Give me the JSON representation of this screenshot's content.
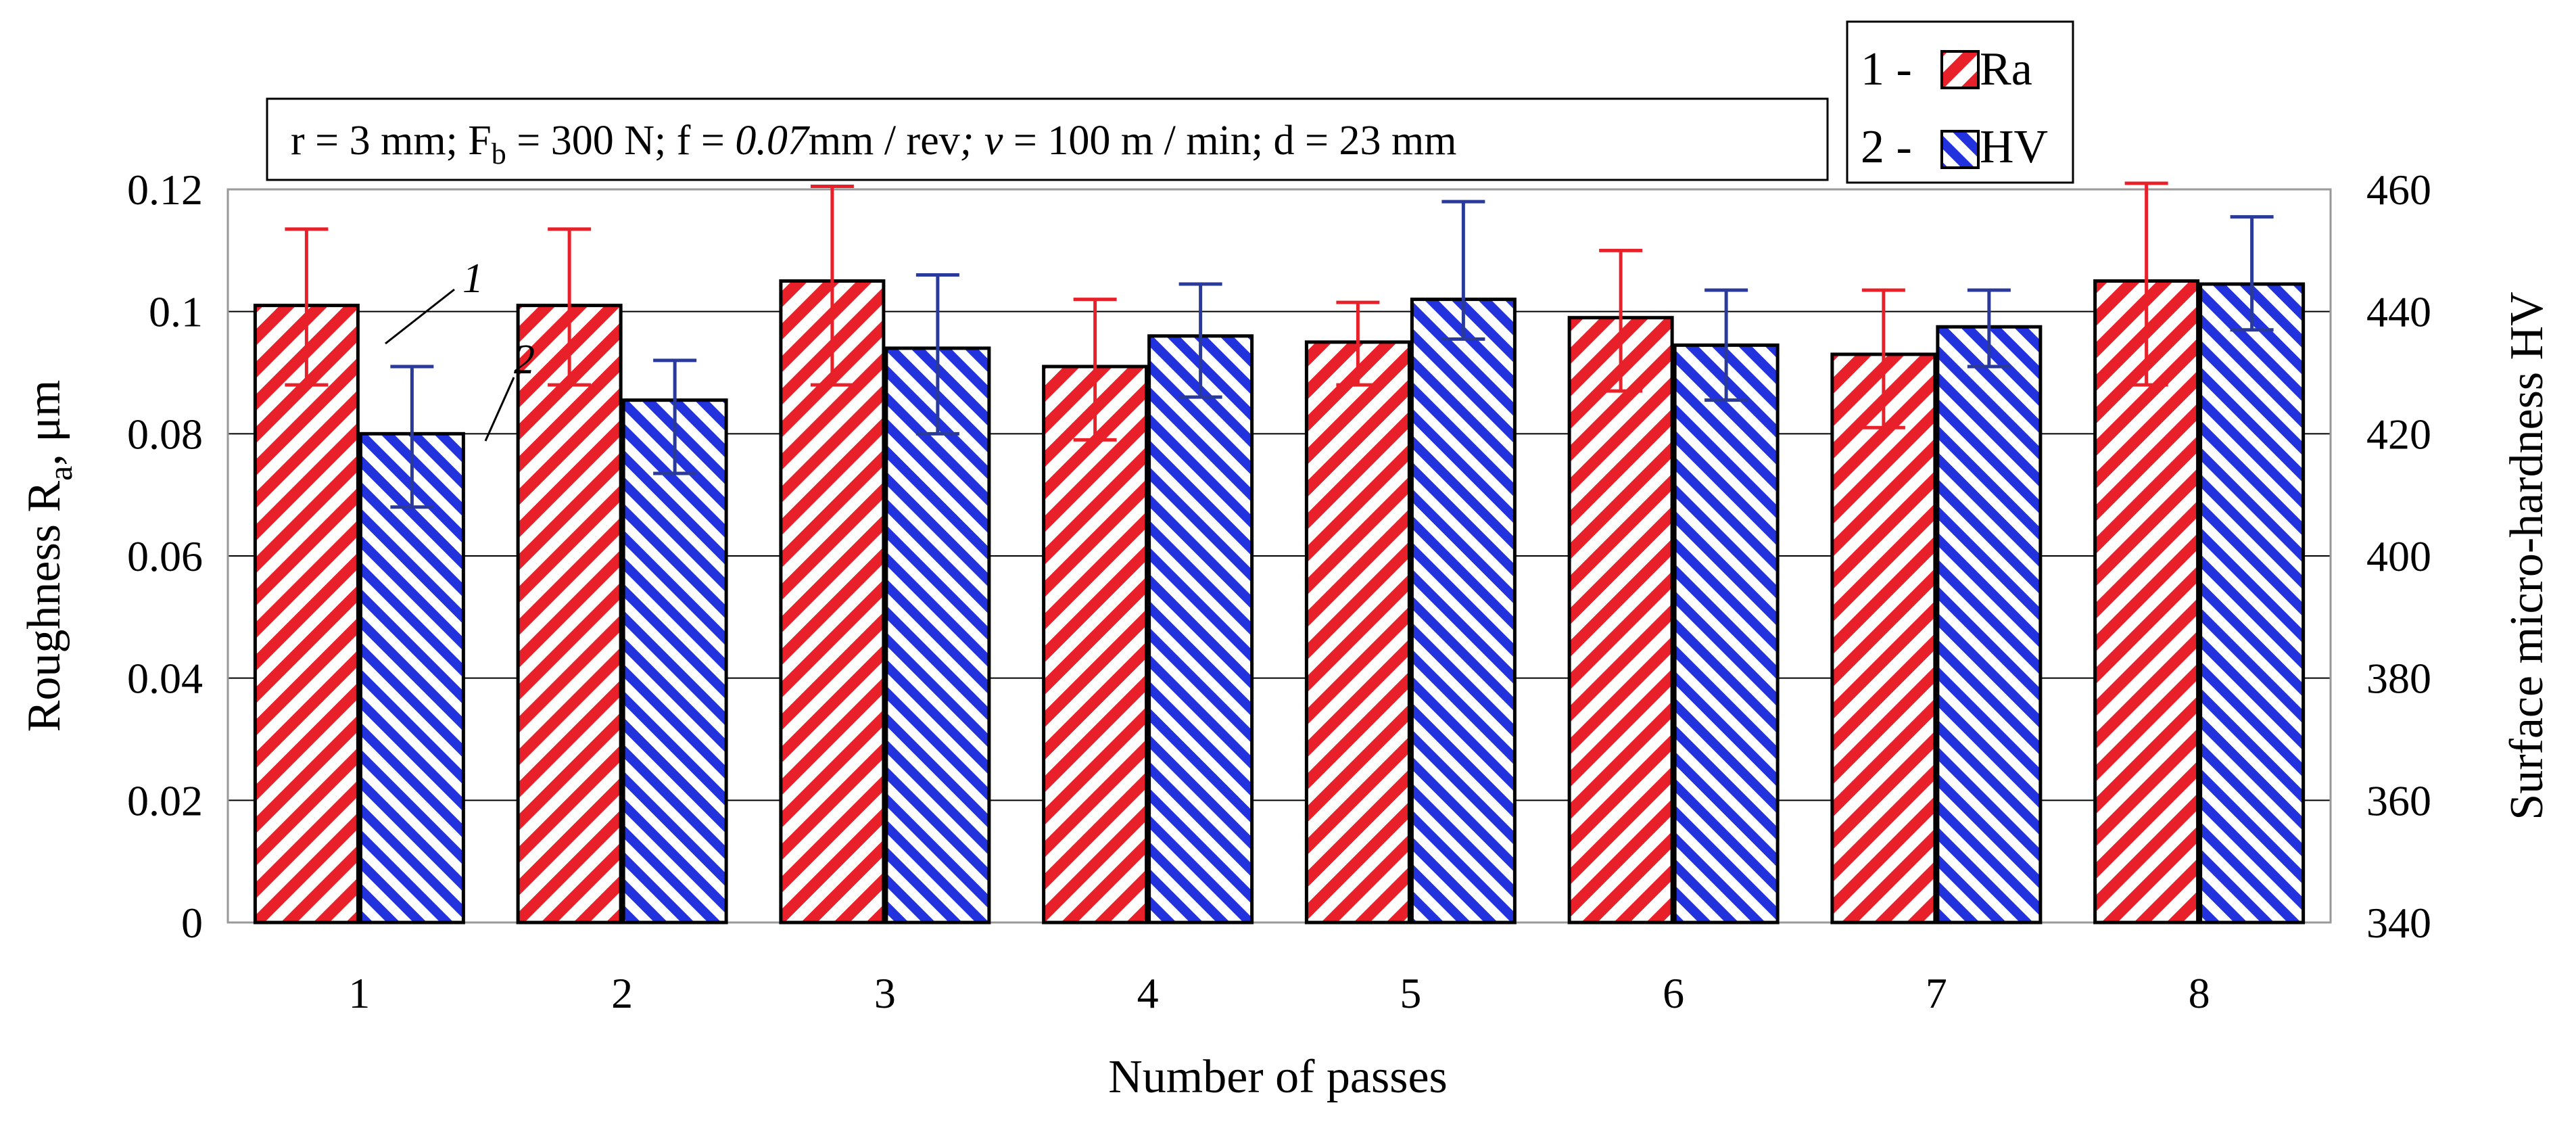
{
  "chart_data": {
    "type": "bar",
    "title": "",
    "conditions": {
      "r": "r = 3 mm;",
      "fb_main": "F",
      "fb_sub": "b",
      "fb_rest": " = 300 N;",
      "f_pre": "f = ",
      "f_val": "0.07",
      "f_unit": "mm / rev",
      "semi": ";",
      "v_sym": "v",
      "v_rest": " = 100 m / min;",
      "d": "d = 23 mm"
    },
    "xlabel": "Number of passes",
    "ylabel_left": {
      "main": "Roughness R",
      "sub": "a",
      "unit": ", μm"
    },
    "ylabel_right": "Surface micro-hardness HV",
    "categories": [
      "1",
      "2",
      "3",
      "4",
      "5",
      "6",
      "7",
      "8"
    ],
    "ylim_left": [
      0,
      0.12
    ],
    "yticks_left": [
      "0",
      "0.02",
      "0.04",
      "0.06",
      "0.08",
      "0.1",
      "0.12"
    ],
    "ylim_right": [
      340,
      460
    ],
    "yticks_right": [
      "340",
      "360",
      "380",
      "400",
      "420",
      "440",
      "460"
    ],
    "grid": true,
    "legend": {
      "position": "top-right",
      "entries": [
        {
          "prefix": "1 - ",
          "label": "Ra"
        },
        {
          "prefix": "2 - ",
          "label": "HV"
        }
      ]
    },
    "annotations": [
      "1",
      "2"
    ],
    "series": [
      {
        "name": "Ra",
        "axis": "left",
        "color": "#e8202a",
        "values": [
          0.101,
          0.101,
          0.105,
          0.091,
          0.095,
          0.099,
          0.093,
          0.105
        ],
        "err_low": [
          0.088,
          0.088,
          0.088,
          0.079,
          0.088,
          0.087,
          0.081,
          0.088
        ],
        "err_high": [
          0.1135,
          0.1135,
          0.1205,
          0.102,
          0.1015,
          0.11,
          0.1035,
          0.121
        ]
      },
      {
        "name": "HV",
        "axis": "right",
        "color": "#2233dd",
        "values": [
          420,
          425.5,
          434,
          436,
          442,
          434.5,
          437.5,
          444.5
        ],
        "err_low": [
          408,
          413.5,
          420,
          426,
          435.5,
          425.5,
          431,
          437
        ],
        "err_high": [
          431,
          432,
          446,
          444.5,
          458,
          443.5,
          443.5,
          455.5
        ]
      }
    ]
  },
  "colors": {
    "ra_hatch": "#e8202a",
    "hv_hatch": "#2233dd",
    "ra_err": "#e8202a",
    "hv_err": "#2a3a9a",
    "grid": "#000000"
  }
}
